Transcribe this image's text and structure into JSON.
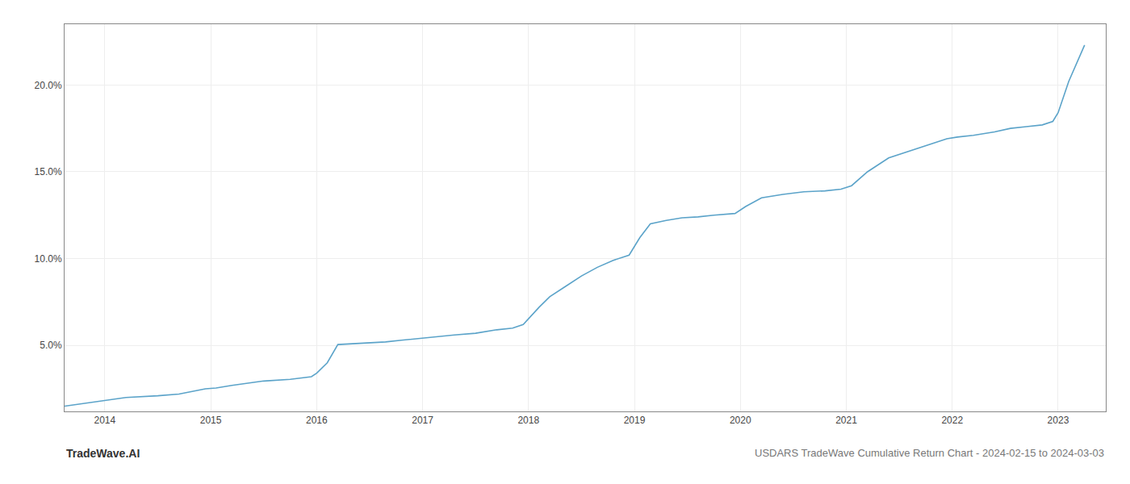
{
  "chart_data": {
    "type": "line",
    "title": "USDARS TradeWave Cumulative Return Chart - 2024-02-15 to 2024-03-03",
    "annotations": [
      "TradeWave.AI"
    ],
    "x": [
      2013.62,
      2014.0,
      2014.2,
      2014.5,
      2014.7,
      2014.95,
      2015.05,
      2015.2,
      2015.5,
      2015.75,
      2015.95,
      2016.0,
      2016.1,
      2016.2,
      2016.35,
      2016.5,
      2016.65,
      2016.8,
      2016.95,
      2017.1,
      2017.3,
      2017.5,
      2017.7,
      2017.85,
      2017.95,
      2018.1,
      2018.2,
      2018.35,
      2018.5,
      2018.65,
      2018.8,
      2018.95,
      2019.05,
      2019.15,
      2019.3,
      2019.45,
      2019.6,
      2019.75,
      2019.95,
      2020.05,
      2020.2,
      2020.4,
      2020.6,
      2020.8,
      2020.95,
      2021.05,
      2021.2,
      2021.4,
      2021.6,
      2021.8,
      2021.95,
      2022.05,
      2022.2,
      2022.4,
      2022.55,
      2022.7,
      2022.85,
      2022.95,
      2023.0,
      2023.1,
      2023.25
    ],
    "values": [
      1.5,
      1.85,
      2.0,
      2.1,
      2.2,
      2.5,
      2.55,
      2.7,
      2.95,
      3.05,
      3.2,
      3.4,
      4.0,
      5.05,
      5.1,
      5.15,
      5.2,
      5.3,
      5.4,
      5.5,
      5.6,
      5.7,
      5.9,
      6.0,
      6.2,
      7.2,
      7.8,
      8.4,
      9.0,
      9.5,
      9.9,
      10.2,
      11.2,
      12.0,
      12.2,
      12.35,
      12.4,
      12.5,
      12.6,
      13.0,
      13.5,
      13.7,
      13.85,
      13.9,
      14.0,
      14.2,
      15.0,
      15.8,
      16.2,
      16.6,
      16.9,
      17.0,
      17.1,
      17.3,
      17.5,
      17.6,
      17.7,
      17.9,
      18.4,
      20.2,
      22.3
    ],
    "color": "#5ba3c9",
    "xlim": [
      2013.62,
      2023.45
    ],
    "ylim": [
      1.2,
      23.5
    ],
    "xticks": [
      2014,
      2015,
      2016,
      2017,
      2018,
      2019,
      2020,
      2021,
      2022,
      2023
    ],
    "yticks": [
      {
        "value": 5.0,
        "label": "5.0%"
      },
      {
        "value": 10.0,
        "label": "10.0%"
      },
      {
        "value": 15.0,
        "label": "15.0%"
      },
      {
        "value": 20.0,
        "label": "20.0%"
      }
    ],
    "grid": true
  }
}
